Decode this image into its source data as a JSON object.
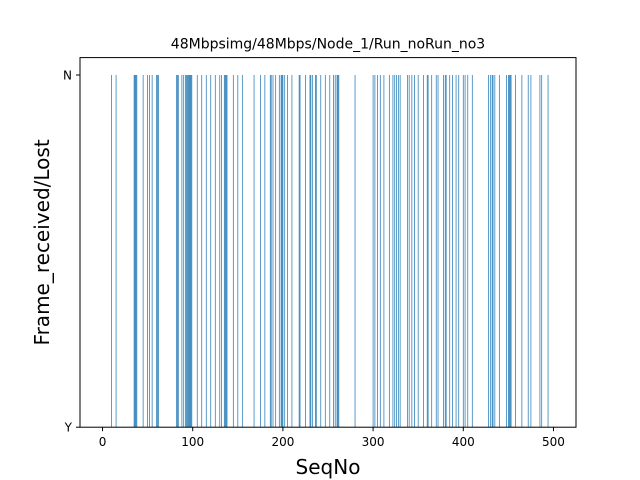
{
  "chart_data": {
    "type": "bar",
    "title": "48Mbpsimg/48Mbps/Node_1/Run_noRun_no3",
    "xlabel": "SeqNo",
    "ylabel": "Frame_received/Lost",
    "xlim": [
      -25,
      525
    ],
    "x_ticks": [
      0,
      100,
      200,
      300,
      400,
      500
    ],
    "y_categories": [
      "Y",
      "N"
    ],
    "grid": false,
    "bar_color": "#1f77b4",
    "lost_seq": [
      10,
      15,
      35,
      36,
      37,
      38,
      45,
      50,
      52,
      55,
      60,
      61,
      62,
      82,
      83,
      84,
      88,
      90,
      92,
      93,
      94,
      95,
      96,
      97,
      98,
      99,
      105,
      110,
      115,
      120,
      125,
      130,
      132,
      135,
      136,
      137,
      138,
      145,
      150,
      155,
      168,
      175,
      180,
      186,
      187,
      189,
      192,
      196,
      198,
      199,
      200,
      202,
      205,
      210,
      218,
      219,
      225,
      230,
      231,
      233,
      236,
      237,
      242,
      247,
      252,
      256,
      258,
      260,
      261,
      262,
      280,
      300,
      302,
      305,
      308,
      312,
      318,
      322,
      324,
      326,
      328,
      330,
      338,
      340,
      343,
      346,
      350,
      356,
      360,
      361,
      365,
      370,
      372,
      378,
      380,
      381,
      385,
      388,
      392,
      395,
      400,
      402,
      405,
      410,
      428,
      430,
      432,
      433,
      435,
      440,
      448,
      450,
      451,
      452,
      453,
      458,
      465,
      472,
      475,
      485,
      487,
      494
    ]
  }
}
